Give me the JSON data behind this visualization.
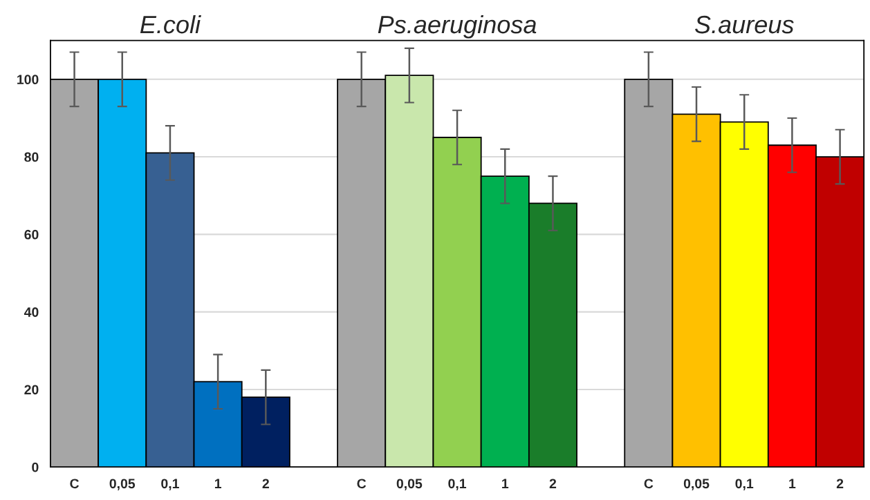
{
  "chart_data": {
    "type": "bar",
    "categories": [
      "C",
      "0,05",
      "0,1",
      "1",
      "2",
      null,
      "C",
      "0,05",
      "0,1",
      "1",
      "2",
      null,
      "C",
      "0,05",
      "0,1",
      "1",
      "2"
    ],
    "values": [
      100,
      100,
      81,
      22,
      18,
      null,
      100,
      101,
      85,
      75,
      68,
      null,
      100,
      91,
      89,
      83,
      80
    ],
    "errors": [
      7,
      7,
      7,
      7,
      7,
      null,
      7,
      7,
      7,
      7,
      7,
      null,
      7,
      7,
      7,
      7,
      7
    ],
    "colors": [
      "#a6a6a6",
      "#00b0f0",
      "#376092",
      "#0070c0",
      "#002060",
      null,
      "#a6a6a6",
      "#c9e7ac",
      "#92d050",
      "#00b050",
      "#1a7d2a",
      null,
      "#a6a6a6",
      "#ffc000",
      "#ffff00",
      "#ff0000",
      "#c00000"
    ],
    "ylim": [
      0,
      110
    ],
    "yticks": [
      0,
      20,
      40,
      60,
      80,
      100
    ],
    "grid": "y",
    "legend": false,
    "annotations": [
      "E.coli",
      "Ps.aeruginosa",
      "S.aureus"
    ]
  }
}
